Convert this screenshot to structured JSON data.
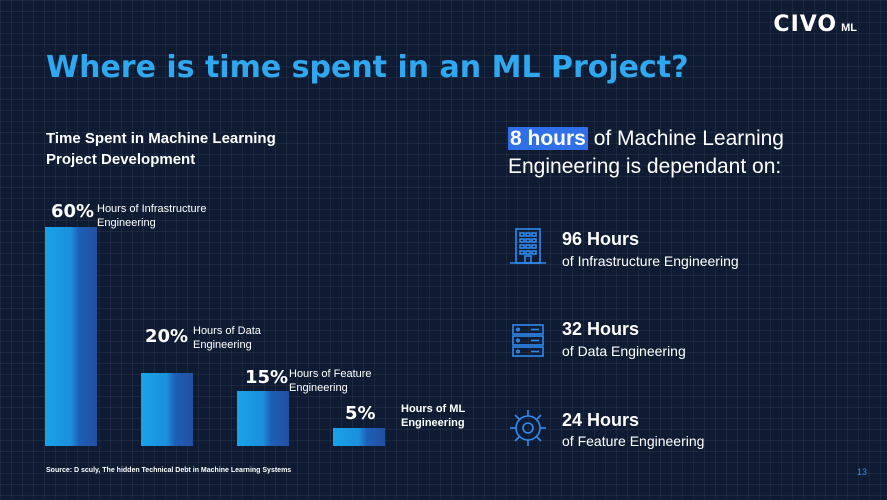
{
  "logo": {
    "mark": "CIVO",
    "sub": "ML"
  },
  "title": "Where is time spent in an ML Project?",
  "chart": {
    "title_line1": "Time Spent in Machine Learning",
    "title_line2": "Project Development",
    "bars": [
      {
        "pct": "60%",
        "label_line1": "Hours of Infrastructure",
        "label_line2": "Engineering"
      },
      {
        "pct": "20%",
        "label_line1": "Hours of Data",
        "label_line2": "Engineering"
      },
      {
        "pct": "15%",
        "label_line1": "Hours of Feature",
        "label_line2": "Engineering"
      },
      {
        "pct": "5%",
        "label_line1": "Hours of ML",
        "label_line2": "Engineering"
      }
    ]
  },
  "chart_data": {
    "type": "bar",
    "title": "Time Spent in Machine Learning Project Development",
    "categories": [
      "Hours of Infrastructure Engineering",
      "Hours of Data Engineering",
      "Hours of Feature Engineering",
      "Hours of ML Engineering"
    ],
    "values": [
      60,
      20,
      15,
      5
    ],
    "ylim": [
      0,
      60
    ],
    "grid": false
  },
  "headline": {
    "highlight": "8 hours",
    "line1_rest": " of Machine Learning",
    "line2": "Engineering is dependant on:"
  },
  "stats": [
    {
      "hours": "96 Hours",
      "desc": "of Infrastructure Engineering",
      "icon": "building-icon"
    },
    {
      "hours": "32 Hours",
      "desc": "of Data Engineering",
      "icon": "server-icon"
    },
    {
      "hours": "24 Hours",
      "desc": "of Feature Engineering",
      "icon": "gear-icon"
    }
  ],
  "source": "Source: D sculy, The hidden Technical Debt in Machine Learning Systems",
  "page_number": "13",
  "colors": {
    "background": "#0f1b33",
    "accent": "#2fa8f0",
    "highlight": "#2f6fe8"
  }
}
